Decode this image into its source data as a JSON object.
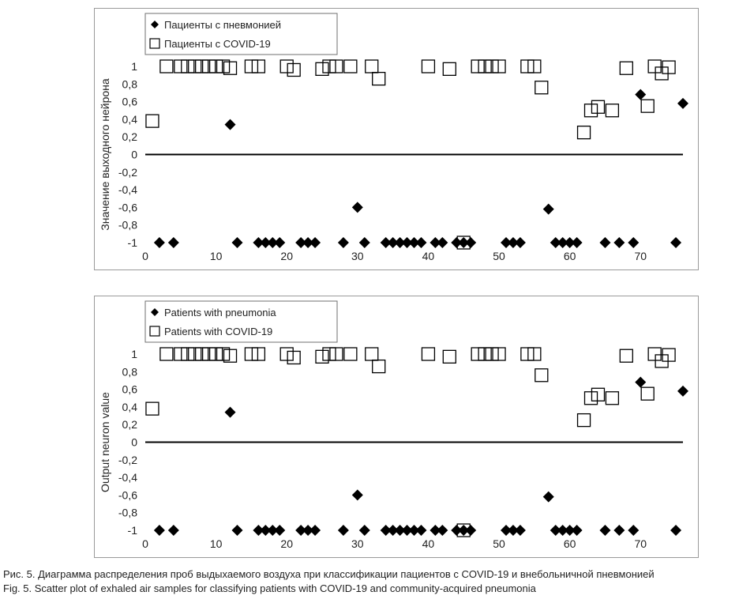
{
  "chart_data": [
    {
      "type": "scatter",
      "xlim": [
        0,
        76
      ],
      "ylim": [
        -1,
        1
      ],
      "xticks": [
        "0",
        "10",
        "20",
        "30",
        "40",
        "50",
        "60",
        "70"
      ],
      "yticks": [
        "-1",
        "-0,8",
        "-0,6",
        "-0,4",
        "-0,2",
        "0",
        "0,2",
        "0,4",
        "0,6",
        "0,8",
        "1"
      ],
      "ylabel": "Значение выходного нейрона",
      "xlabel": "",
      "legend": "top-left",
      "zero_line": true,
      "series": [
        {
          "name": "Пациенты с пневмонией",
          "marker": "diamond-filled",
          "points": [
            [
              2,
              -1
            ],
            [
              4,
              -1
            ],
            [
              12,
              0.34
            ],
            [
              13,
              -1
            ],
            [
              16,
              -1
            ],
            [
              17,
              -1
            ],
            [
              18,
              -1
            ],
            [
              19,
              -1
            ],
            [
              22,
              -1
            ],
            [
              23,
              -1
            ],
            [
              24,
              -1
            ],
            [
              28,
              -1
            ],
            [
              30,
              -0.6
            ],
            [
              31,
              -1
            ],
            [
              34,
              -1
            ],
            [
              35,
              -1
            ],
            [
              36,
              -1
            ],
            [
              37,
              -1
            ],
            [
              38,
              -1
            ],
            [
              39,
              -1
            ],
            [
              41,
              -1
            ],
            [
              42,
              -1
            ],
            [
              44,
              -1
            ],
            [
              45,
              -1
            ],
            [
              46,
              -1
            ],
            [
              51,
              -1
            ],
            [
              52,
              -1
            ],
            [
              53,
              -1
            ],
            [
              57,
              -0.62
            ],
            [
              58,
              -1
            ],
            [
              59,
              -1
            ],
            [
              60,
              -1
            ],
            [
              61,
              -1
            ],
            [
              65,
              -1
            ],
            [
              67,
              -1
            ],
            [
              69,
              -1
            ],
            [
              70,
              0.68
            ],
            [
              75,
              -1
            ],
            [
              76,
              0.58
            ]
          ]
        },
        {
          "name": "Пациенты с COVID-19",
          "marker": "square-open",
          "points": [
            [
              1,
              0.38
            ],
            [
              3,
              1
            ],
            [
              5,
              1
            ],
            [
              6,
              1
            ],
            [
              7,
              1
            ],
            [
              8,
              1
            ],
            [
              9,
              1
            ],
            [
              10,
              1
            ],
            [
              11,
              1
            ],
            [
              12,
              0.98
            ],
            [
              15,
              1
            ],
            [
              16,
              1
            ],
            [
              20,
              1
            ],
            [
              21,
              0.96
            ],
            [
              25,
              0.97
            ],
            [
              26,
              1
            ],
            [
              27,
              1
            ],
            [
              29,
              1
            ],
            [
              32,
              1
            ],
            [
              33,
              0.86
            ],
            [
              40,
              1
            ],
            [
              43,
              0.97
            ],
            [
              45,
              -1
            ],
            [
              47,
              1
            ],
            [
              48,
              1
            ],
            [
              49,
              1
            ],
            [
              50,
              1
            ],
            [
              54,
              1
            ],
            [
              55,
              1
            ],
            [
              56,
              0.76
            ],
            [
              62,
              0.25
            ],
            [
              63,
              0.5
            ],
            [
              64,
              0.54
            ],
            [
              66,
              0.5
            ],
            [
              68,
              0.98
            ],
            [
              71,
              0.55
            ],
            [
              72,
              1
            ],
            [
              73,
              0.92
            ],
            [
              74,
              0.99
            ]
          ]
        }
      ]
    },
    {
      "type": "scatter",
      "xlim": [
        0,
        76
      ],
      "ylim": [
        -1,
        1
      ],
      "xticks": [
        "0",
        "10",
        "20",
        "30",
        "40",
        "50",
        "60",
        "70"
      ],
      "yticks": [
        "-1",
        "-0,8",
        "-0,6",
        "-0,4",
        "-0,2",
        "0",
        "0,2",
        "0,4",
        "0,6",
        "0,8",
        "1"
      ],
      "ylabel": "Output neuron value",
      "xlabel": "",
      "legend": "top-left",
      "zero_line": true,
      "series": [
        {
          "name": "Patients with pneumonia",
          "marker": "diamond-filled",
          "points": [
            [
              2,
              -1
            ],
            [
              4,
              -1
            ],
            [
              12,
              0.34
            ],
            [
              13,
              -1
            ],
            [
              16,
              -1
            ],
            [
              17,
              -1
            ],
            [
              18,
              -1
            ],
            [
              19,
              -1
            ],
            [
              22,
              -1
            ],
            [
              23,
              -1
            ],
            [
              24,
              -1
            ],
            [
              28,
              -1
            ],
            [
              30,
              -0.6
            ],
            [
              31,
              -1
            ],
            [
              34,
              -1
            ],
            [
              35,
              -1
            ],
            [
              36,
              -1
            ],
            [
              37,
              -1
            ],
            [
              38,
              -1
            ],
            [
              39,
              -1
            ],
            [
              41,
              -1
            ],
            [
              42,
              -1
            ],
            [
              44,
              -1
            ],
            [
              45,
              -1
            ],
            [
              46,
              -1
            ],
            [
              51,
              -1
            ],
            [
              52,
              -1
            ],
            [
              53,
              -1
            ],
            [
              57,
              -0.62
            ],
            [
              58,
              -1
            ],
            [
              59,
              -1
            ],
            [
              60,
              -1
            ],
            [
              61,
              -1
            ],
            [
              65,
              -1
            ],
            [
              67,
              -1
            ],
            [
              69,
              -1
            ],
            [
              70,
              0.68
            ],
            [
              75,
              -1
            ],
            [
              76,
              0.58
            ]
          ]
        },
        {
          "name": "Patients with COVID-19",
          "marker": "square-open",
          "points": [
            [
              1,
              0.38
            ],
            [
              3,
              1
            ],
            [
              5,
              1
            ],
            [
              6,
              1
            ],
            [
              7,
              1
            ],
            [
              8,
              1
            ],
            [
              9,
              1
            ],
            [
              10,
              1
            ],
            [
              11,
              1
            ],
            [
              12,
              0.98
            ],
            [
              15,
              1
            ],
            [
              16,
              1
            ],
            [
              20,
              1
            ],
            [
              21,
              0.96
            ],
            [
              25,
              0.97
            ],
            [
              26,
              1
            ],
            [
              27,
              1
            ],
            [
              29,
              1
            ],
            [
              32,
              1
            ],
            [
              33,
              0.86
            ],
            [
              40,
              1
            ],
            [
              43,
              0.97
            ],
            [
              45,
              -1
            ],
            [
              47,
              1
            ],
            [
              48,
              1
            ],
            [
              49,
              1
            ],
            [
              50,
              1
            ],
            [
              54,
              1
            ],
            [
              55,
              1
            ],
            [
              56,
              0.76
            ],
            [
              62,
              0.25
            ],
            [
              63,
              0.5
            ],
            [
              64,
              0.54
            ],
            [
              66,
              0.5
            ],
            [
              68,
              0.98
            ],
            [
              71,
              0.55
            ],
            [
              72,
              1
            ],
            [
              73,
              0.92
            ],
            [
              74,
              0.99
            ]
          ]
        }
      ]
    }
  ],
  "caption": {
    "ru": "Рис. 5. Диаграмма распределения проб выдыхаемого воздуха  при классификации пациентов с COVID-19 и внебольничной пневмонией",
    "en": "Fig. 5. Scatter plot of exhaled air samples for classifying patients with COVID-19 and community-acquired pneumonia"
  },
  "colors": {
    "axis": "#000000",
    "marker": "#000000",
    "frame": "#9a9a9a"
  }
}
